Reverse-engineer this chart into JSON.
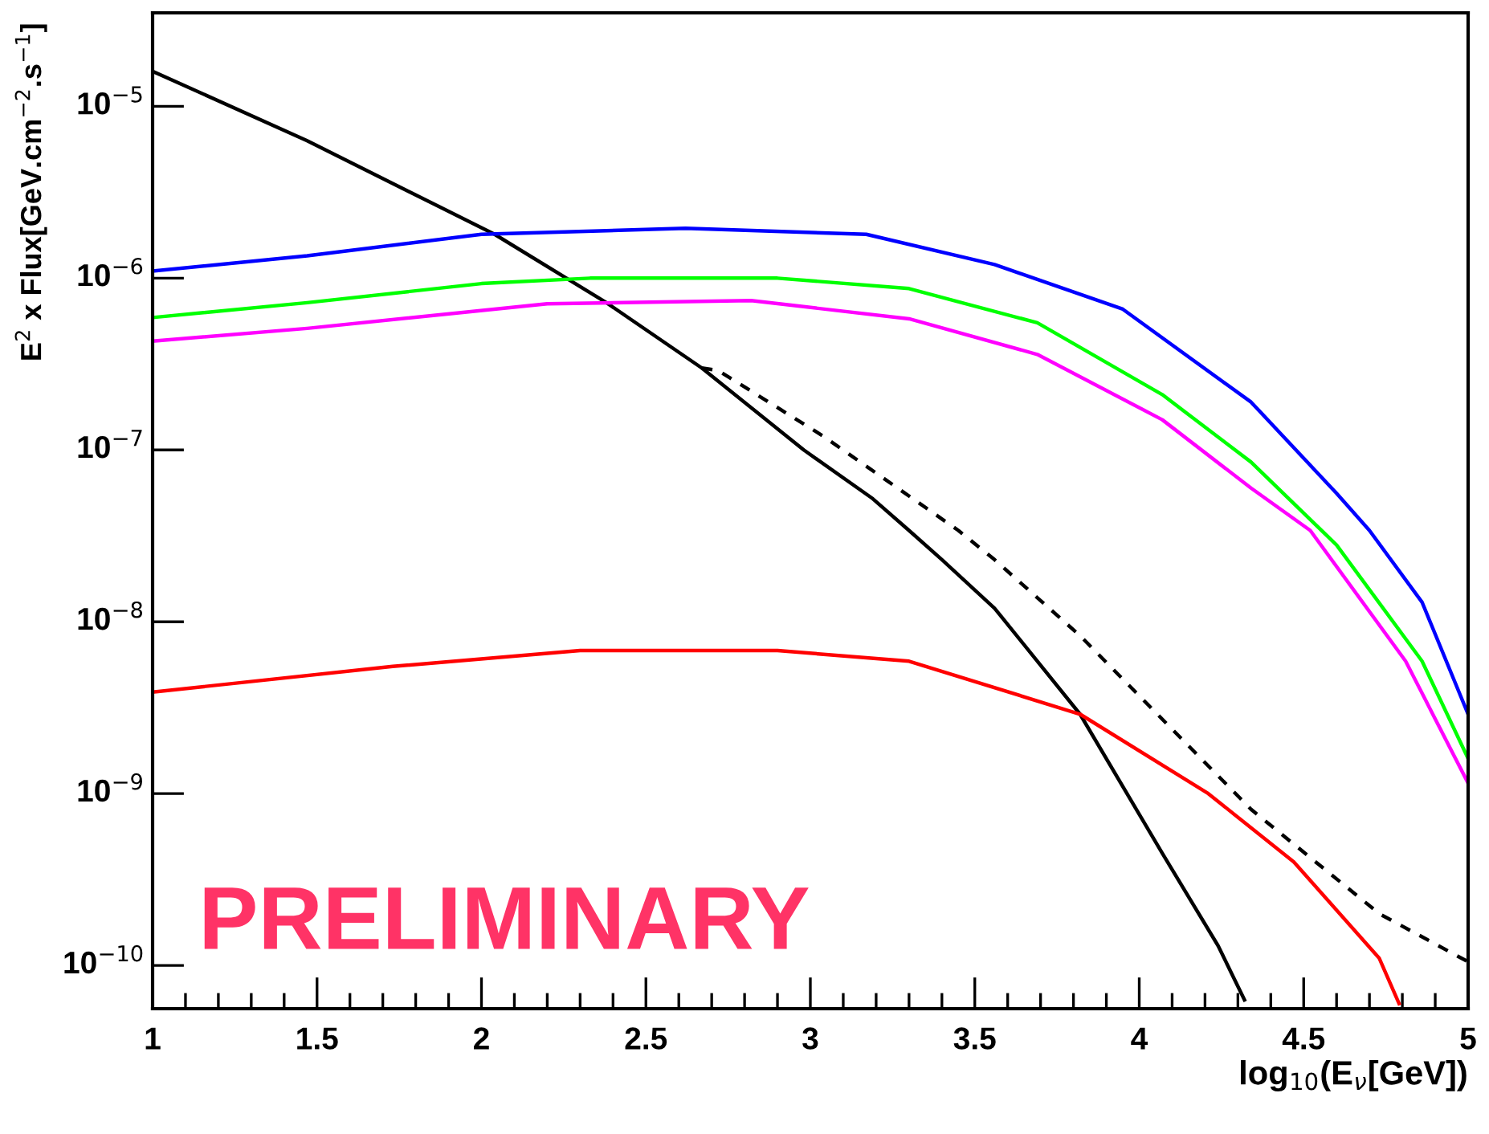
{
  "chart_data": {
    "type": "line",
    "xlabel": "log$_{10}$(E$_{ν}$[GeV])",
    "ylabel": "E$^{2}$ x Flux[GeV.cm$^{−2}$.s$^{−1}$]",
    "annotations": [
      "PRELIMINARY"
    ],
    "log": "y",
    "xlim": [
      1,
      5
    ],
    "xticks": [
      1,
      1.5,
      2,
      2.5,
      3,
      3.5,
      4,
      4.5,
      5
    ],
    "ylim": [
      5.6e-11,
      3.5e-05
    ],
    "yticks": [
      {
        "value": 1e-10,
        "label": "10$^{−10}$"
      },
      {
        "value": 1e-09,
        "label": "10$^{−9}$"
      },
      {
        "value": 1e-08,
        "label": "10$^{−8}$"
      },
      {
        "value": 1e-07,
        "label": "10$^{−7}$"
      },
      {
        "value": 1e-06,
        "label": "10$^{−6}$"
      },
      {
        "value": 1e-05,
        "label": "10$^{−5}$"
      }
    ],
    "grid": false,
    "legend": false,
    "marker": "none",
    "series": [
      {
        "color": "#000000",
        "line_style": "solid",
        "x": [
          1,
          1.47,
          2.04,
          2.38,
          2.67,
          2.98,
          3.19,
          3.3,
          3.4,
          3.56,
          3.82,
          4.07,
          4.24,
          4.32
        ],
        "values": [
          1.6e-05,
          6.3e-06,
          1.8e-06,
          7.2e-07,
          3e-07,
          1e-07,
          5.2e-08,
          3.4e-08,
          2.3e-08,
          1.2e-08,
          2.9e-09,
          4.5e-10,
          1.3e-10,
          6.3e-11
        ]
      },
      {
        "color": "#000000",
        "line_style": "dashed",
        "x": [
          2.67,
          2.72,
          3.04,
          3.45,
          3.56,
          3.82,
          4.34,
          4.73,
          5.0
        ],
        "values": [
          3e-07,
          2.9e-07,
          1.2e-07,
          3.4e-08,
          2.3e-08,
          8.3e-09,
          8.1e-10,
          2e-10,
          1.05e-10
        ]
      },
      {
        "color": "#0000ff",
        "line_style": "solid",
        "x": [
          1,
          1.47,
          2.0,
          2.62,
          3.17,
          3.56,
          3.95,
          4.34,
          4.6,
          4.7,
          4.86,
          5.0
        ],
        "values": [
          1.1e-06,
          1.35e-06,
          1.8e-06,
          1.95e-06,
          1.8e-06,
          1.2e-06,
          6.6e-07,
          1.9e-07,
          5.6e-08,
          3.4e-08,
          1.3e-08,
          2.9e-09
        ]
      },
      {
        "color": "#00ff00",
        "line_style": "solid",
        "x": [
          1,
          1.47,
          2.0,
          2.33,
          2.9,
          3.3,
          3.69,
          4.07,
          4.34,
          4.6,
          4.86,
          5.0
        ],
        "values": [
          5.9e-07,
          7.2e-07,
          9.3e-07,
          1e-06,
          1e-06,
          8.7e-07,
          5.5e-07,
          2.1e-07,
          8.5e-08,
          2.8e-08,
          5.9e-09,
          1.6e-09
        ]
      },
      {
        "color": "#ff00ff",
        "line_style": "solid",
        "x": [
          1,
          1.47,
          2.2,
          2.82,
          3.3,
          3.69,
          4.07,
          4.34,
          4.52,
          4.81,
          5.0
        ],
        "values": [
          4.3e-07,
          5.1e-07,
          7.1e-07,
          7.4e-07,
          5.8e-07,
          3.6e-07,
          1.5e-07,
          6e-08,
          3.4e-08,
          5.9e-09,
          1.15e-09
        ]
      },
      {
        "color": "#ff0000",
        "line_style": "solid",
        "x": [
          1,
          1.73,
          2.3,
          2.9,
          3.3,
          3.82,
          4.21,
          4.47,
          4.73,
          4.79
        ],
        "values": [
          3.9e-09,
          5.5e-09,
          6.8e-09,
          6.8e-09,
          5.9e-09,
          2.9e-09,
          1e-09,
          4e-10,
          1.1e-10,
          6e-11
        ]
      }
    ]
  }
}
